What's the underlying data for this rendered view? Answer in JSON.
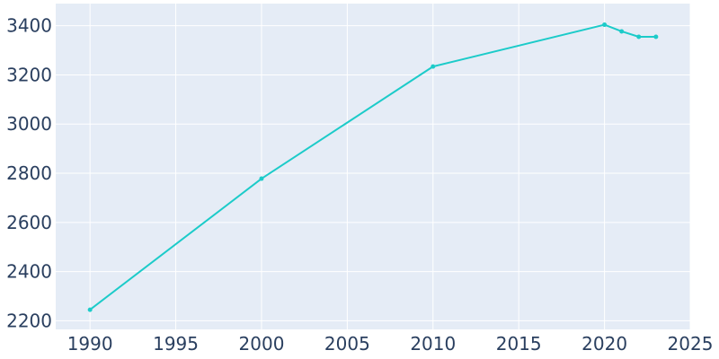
{
  "chart_data": {
    "type": "line",
    "title": "",
    "xlabel": "",
    "ylabel": "",
    "xlim": [
      1988,
      2025
    ],
    "ylim": [
      2165,
      3490
    ],
    "x_ticks": [
      1990,
      1995,
      2000,
      2005,
      2010,
      2015,
      2020,
      2025
    ],
    "y_ticks": [
      2200,
      2400,
      2600,
      2800,
      3000,
      3200,
      3400
    ],
    "grid": true,
    "legend": "none",
    "colors": {
      "plot_background": "#e5ecf6",
      "grid": "#ffffff",
      "line": "#1ccbc9",
      "tick_text": "#2a3f5f"
    },
    "series": [
      {
        "x": [
          1990,
          2000,
          2010,
          2020,
          2021,
          2022,
          2023
        ],
        "y": [
          2245,
          2778,
          3234,
          3404,
          3377,
          3355,
          3355
        ]
      }
    ]
  }
}
